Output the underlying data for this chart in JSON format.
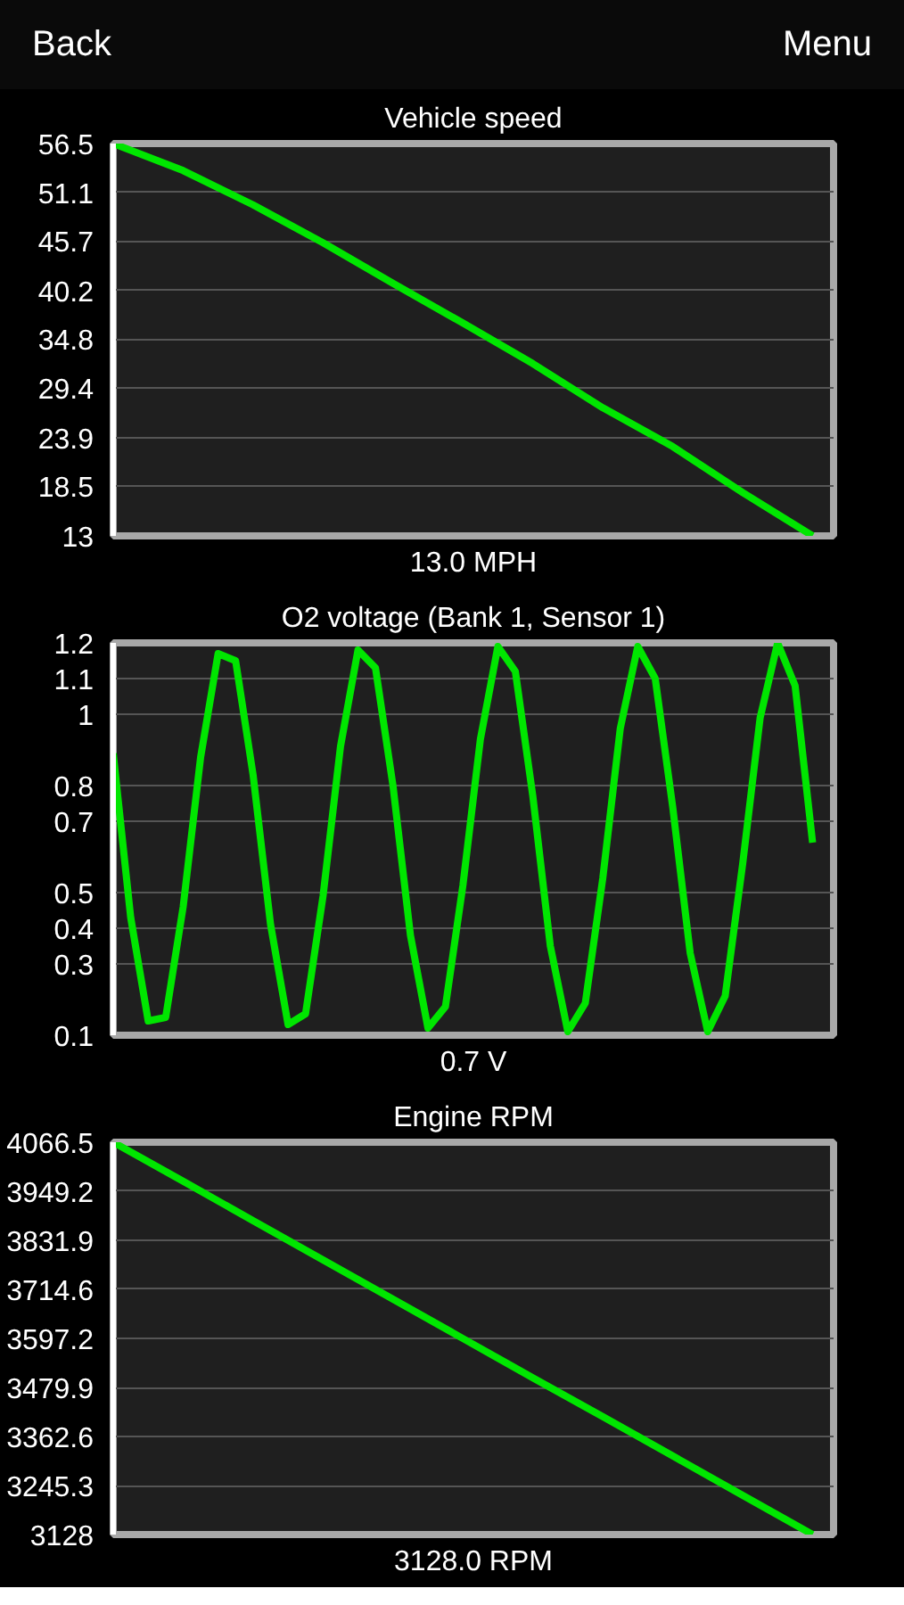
{
  "chart_data": [
    {
      "type": "line",
      "title": "Vehicle speed",
      "annotations": [
        "13.0 MPH",
        "Back",
        "Menu"
      ],
      "categories": [
        null,
        null,
        null,
        null,
        null,
        null,
        null,
        null,
        null,
        null,
        null
      ],
      "series": [
        {
          "color": "#00e600",
          "values": [
            56.5,
            53.5,
            49.7,
            45.5,
            41.0,
            36.6,
            32.1,
            27.2,
            22.9,
            17.8,
            13.0
          ]
        }
      ],
      "ylim": [
        13,
        56.5
      ],
      "yticks": [
        13,
        18.5,
        23.9,
        29.4,
        34.8,
        40.2,
        45.7,
        51.1,
        56.5
      ],
      "grid": "y",
      "tick_labels": "y"
    },
    {
      "type": "line",
      "title": "O2 voltage (Bank 1, Sensor 1)",
      "annotations": [
        "0.7 V"
      ],
      "categories": [
        null,
        null,
        null,
        null,
        null,
        null,
        null,
        null,
        null,
        null,
        null,
        null,
        null,
        null,
        null,
        null,
        null,
        null,
        null,
        null,
        null,
        null,
        null,
        null,
        null,
        null,
        null,
        null,
        null,
        null,
        null,
        null,
        null,
        null,
        null,
        null,
        null,
        null,
        null,
        null,
        null
      ],
      "series": [
        {
          "color": "#00e600",
          "values": [
            0.89,
            0.43,
            0.14,
            0.15,
            0.46,
            0.88,
            1.17,
            1.15,
            0.83,
            0.41,
            0.13,
            0.16,
            0.49,
            0.91,
            1.18,
            1.13,
            0.8,
            0.38,
            0.12,
            0.18,
            0.52,
            0.93,
            1.19,
            1.12,
            0.77,
            0.35,
            0.11,
            0.19,
            0.54,
            0.96,
            1.19,
            1.1,
            0.74,
            0.33,
            0.11,
            0.21,
            0.58,
            0.99,
            1.2,
            1.08,
            0.64
          ]
        }
      ],
      "ylim": [
        0.1,
        1.2
      ],
      "yticks": [
        0.1,
        0.3,
        0.4,
        0.5,
        0.7,
        0.8,
        1,
        1.1,
        1.2
      ],
      "grid": "y",
      "tick_labels": "y"
    },
    {
      "type": "line",
      "title": "Engine RPM",
      "annotations": [
        "3128.0 RPM"
      ],
      "categories": [
        null,
        null,
        null,
        null,
        null,
        null,
        null,
        null,
        null,
        null,
        null
      ],
      "series": [
        {
          "color": "#00e600",
          "values": [
            4066.5,
            3973,
            3879,
            3785,
            3691,
            3597,
            3503,
            3410,
            3316,
            3222,
            3128
          ]
        }
      ],
      "ylim": [
        3128,
        4066.5
      ],
      "yticks": [
        3128,
        3245.3,
        3362.6,
        3479.9,
        3597.2,
        3714.6,
        3831.9,
        3949.2,
        4066.5
      ],
      "grid": "y",
      "tick_labels": "y"
    }
  ]
}
